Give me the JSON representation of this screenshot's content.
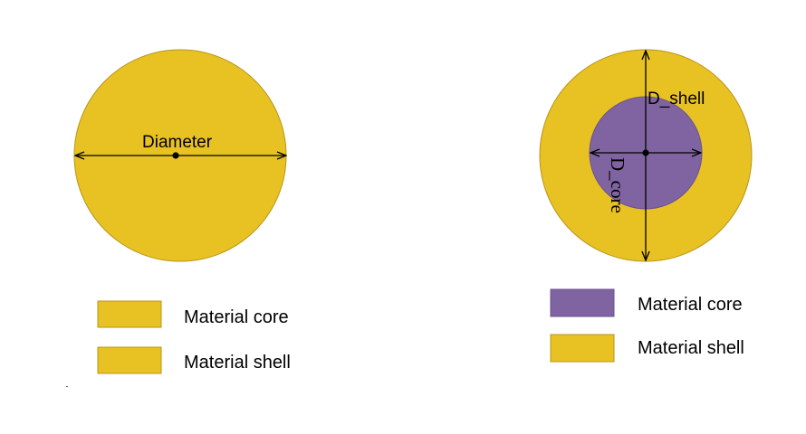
{
  "colors": {
    "gold": "#E8C123",
    "gold_stroke": "#B8961A",
    "purple": "#8064A2",
    "purple_stroke": "#6B5290",
    "line": "#000000"
  },
  "left_particle": {
    "dimension_label": "Diameter",
    "legend": [
      {
        "label": "Material core",
        "color": "#E8C123"
      },
      {
        "label": "Material shell",
        "color": "#E8C123"
      }
    ]
  },
  "right_particle": {
    "shell_label": "D_shell",
    "core_label": "D_core",
    "legend": [
      {
        "label": "Material core",
        "color": "#8064A2"
      },
      {
        "label": "Material shell",
        "color": "#E8C123"
      }
    ]
  }
}
